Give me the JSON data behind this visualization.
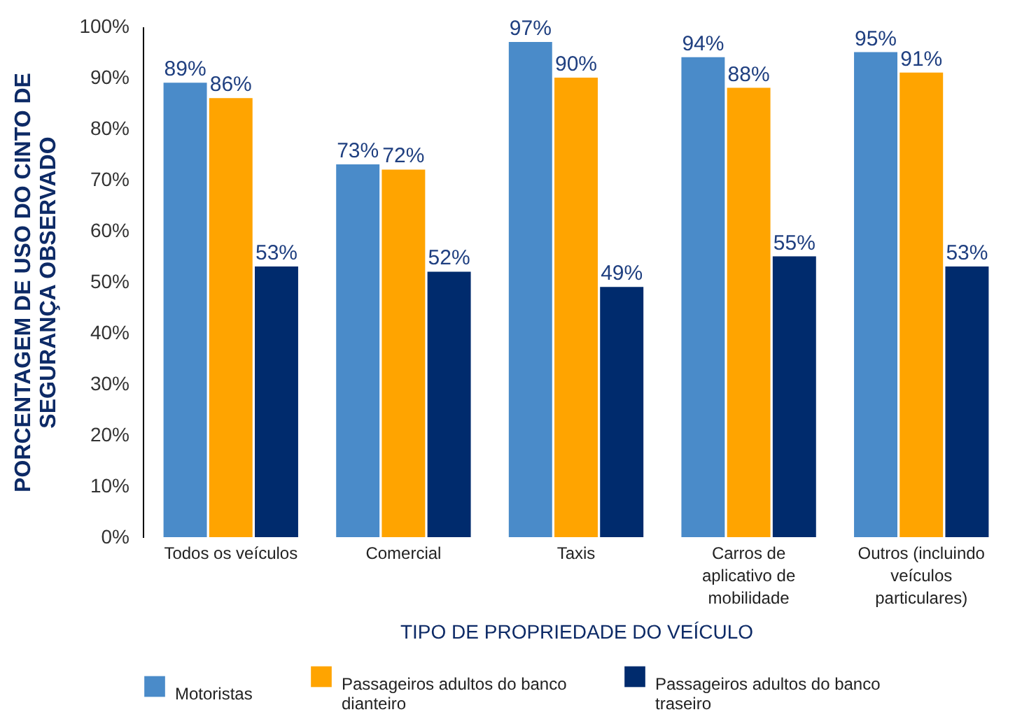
{
  "chart_data": {
    "type": "bar",
    "xlabel": "TIPO DE PROPRIEDADE DO VEÍCULO",
    "ylabel": "PORCENTAGEM DE USO DO CINTO DE SEGURANÇA OBSERVADO",
    "categories": [
      "Todos os veículos",
      "Comercial",
      "Taxis",
      "Carros de aplicativo de mobilidade",
      "Outros (incluindo veículos particulares)"
    ],
    "series": [
      {
        "name": "Motoristas",
        "color": "#4a8bc9",
        "values": [
          89,
          73,
          97,
          94,
          95
        ],
        "value_labels": [
          "89%",
          "73%",
          "97%",
          "94%",
          "95%"
        ]
      },
      {
        "name": "Passageiros adultos do banco dianteiro",
        "color": "#ffa400",
        "values": [
          86,
          72,
          90,
          88,
          91
        ],
        "value_labels": [
          "86%",
          "72%",
          "90%",
          "88%",
          "91%"
        ]
      },
      {
        "name": "Passageiros adultos do banco traseiro",
        "color": "#002b6d",
        "values": [
          53,
          52,
          49,
          55,
          53
        ],
        "value_labels": [
          "53%",
          "52%",
          "49%",
          "55%",
          "53%"
        ]
      }
    ],
    "ylim": [
      0,
      100
    ],
    "yticks": [
      {
        "value": 0,
        "label": "0%"
      },
      {
        "value": 10,
        "label": "10%"
      },
      {
        "value": 20,
        "label": "20%"
      },
      {
        "value": 30,
        "label": "30%"
      },
      {
        "value": 40,
        "label": "40%"
      },
      {
        "value": 50,
        "label": "50%"
      },
      {
        "value": 60,
        "label": "60%"
      },
      {
        "value": 70,
        "label": "70%"
      },
      {
        "value": 80,
        "label": "80%"
      },
      {
        "value": 90,
        "label": "90%"
      },
      {
        "value": 100,
        "label": "100%"
      }
    ],
    "grid": false,
    "legend": "bottom left"
  }
}
